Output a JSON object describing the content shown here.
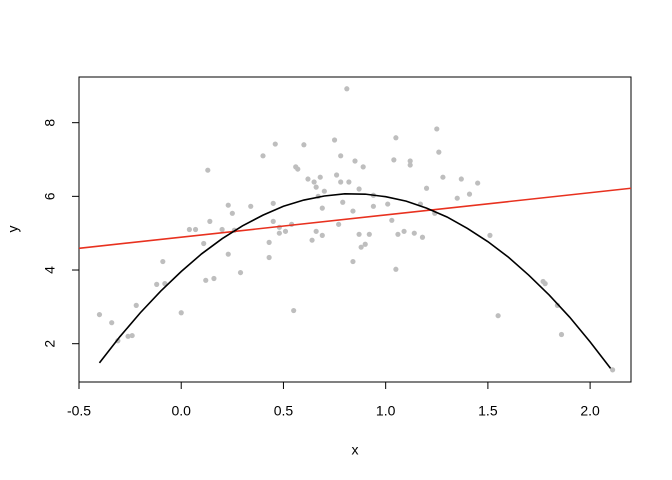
{
  "chart_data": {
    "type": "scatter",
    "xlabel": "x",
    "ylabel": "y",
    "xlim": [
      -0.5,
      2.2
    ],
    "ylim": [
      0.96,
      9.24
    ],
    "xticks": [
      -0.5,
      {
        "value": 0,
        "label": "0.0"
      },
      0.5,
      {
        "value": 1,
        "label": "1.0"
      },
      1.5,
      {
        "value": 2,
        "label": "2.0"
      }
    ],
    "yticks": [
      2,
      4,
      6,
      8
    ],
    "series": [
      {
        "color": "#bebebe",
        "x": [
          -0.4,
          -0.34,
          -0.31,
          -0.26,
          -0.24,
          -0.22,
          -0.12,
          -0.09,
          -0.08,
          0.0,
          0.04,
          0.07,
          0.11,
          0.12,
          0.13,
          0.14,
          0.16,
          0.2,
          0.23,
          0.23,
          0.25,
          0.26,
          0.29,
          0.34,
          0.4,
          0.43,
          0.43,
          0.45,
          0.45,
          0.46,
          0.48,
          0.48,
          0.51,
          0.54,
          0.55,
          0.56,
          0.57,
          0.6,
          0.62,
          0.64,
          0.65,
          0.66,
          0.66,
          0.67,
          0.68,
          0.69,
          0.69,
          0.7,
          0.75,
          0.76,
          0.77,
          0.78,
          0.78,
          0.79,
          0.81,
          0.82,
          0.84,
          0.84,
          0.85,
          0.87,
          0.87,
          0.88,
          0.89,
          0.9,
          0.92,
          0.94,
          0.94,
          1.01,
          1.03,
          1.04,
          1.05,
          1.05,
          1.06,
          1.09,
          1.12,
          1.12,
          1.14,
          1.17,
          1.18,
          1.2,
          1.24,
          1.25,
          1.26,
          1.28,
          1.35,
          1.37,
          1.41,
          1.45,
          1.51,
          1.55,
          1.77,
          1.78,
          1.84,
          1.86,
          2.11
        ],
        "values": [
          2.79,
          2.57,
          2.08,
          2.2,
          2.22,
          3.04,
          3.61,
          4.23,
          3.63,
          2.84,
          5.1,
          5.1,
          4.72,
          3.72,
          6.71,
          5.32,
          3.77,
          5.1,
          5.76,
          4.43,
          5.54,
          5.08,
          3.93,
          5.73,
          7.1,
          4.34,
          4.75,
          5.32,
          5.81,
          7.42,
          5.0,
          5.16,
          5.05,
          5.24,
          2.9,
          6.8,
          6.74,
          7.4,
          6.47,
          4.81,
          6.39,
          5.05,
          6.25,
          6.0,
          6.52,
          5.68,
          4.94,
          6.14,
          7.53,
          6.58,
          5.24,
          7.1,
          6.39,
          5.84,
          8.92,
          6.39,
          5.6,
          4.23,
          6.96,
          4.97,
          6.2,
          4.62,
          6.8,
          4.7,
          4.97,
          6.03,
          5.73,
          5.79,
          5.35,
          6.99,
          7.59,
          4.02,
          4.97,
          5.05,
          6.96,
          6.85,
          5.0,
          5.79,
          4.89,
          6.22,
          5.54,
          7.83,
          7.2,
          6.52,
          5.95,
          6.47,
          6.06,
          6.36,
          4.94,
          2.76,
          3.69,
          3.63,
          3.04,
          2.25,
          1.29
        ]
      }
    ],
    "lines": [
      {
        "color": "#e8311f",
        "x": [
          -0.5,
          2.2
        ],
        "values": [
          4.59,
          6.22
        ]
      },
      {
        "color": "#000000",
        "x": [
          -0.4,
          -0.3,
          -0.2,
          -0.1,
          0,
          0.1,
          0.2,
          0.3,
          0.4,
          0.5,
          0.6,
          0.7,
          0.8,
          0.9,
          1.0,
          1.1,
          1.2,
          1.3,
          1.4,
          1.5,
          1.6,
          1.7,
          1.8,
          1.9,
          2.0,
          2.1
        ],
        "values": [
          1.48,
          2.19,
          2.84,
          3.43,
          3.96,
          4.44,
          4.85,
          5.2,
          5.49,
          5.73,
          5.9,
          6.01,
          6.07,
          6.06,
          5.99,
          5.87,
          5.68,
          5.44,
          5.13,
          4.77,
          4.35,
          3.86,
          3.32,
          2.72,
          2.05,
          1.33
        ]
      }
    ]
  }
}
